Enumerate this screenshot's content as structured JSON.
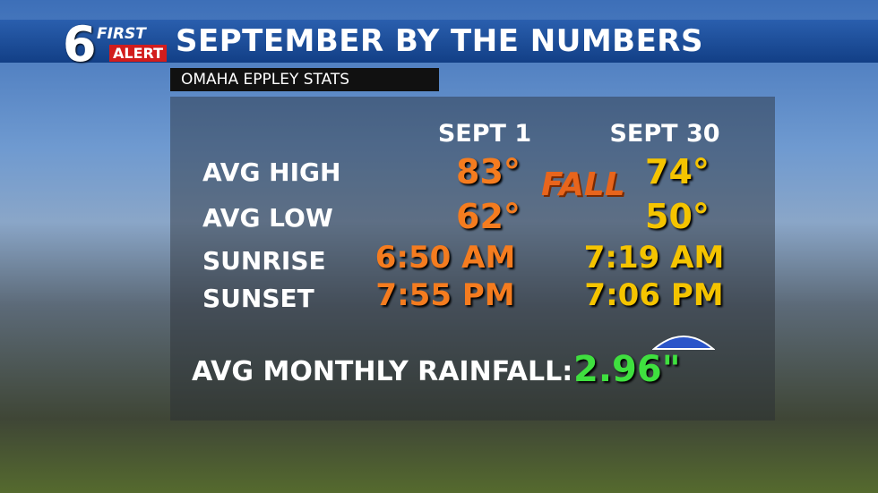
{
  "logo": {
    "number": "6",
    "line1": "FIRST",
    "line2": "ALERT"
  },
  "header": {
    "title": "SEPTEMBER BY THE NUMBERS",
    "subtitle": "OMAHA EPPLEY STATS"
  },
  "table": {
    "columns": [
      "SEPT 1",
      "SEPT 30"
    ],
    "rows": [
      [
        "AVG HIGH",
        "83°",
        "74°"
      ],
      [
        "AVG LOW",
        "62°",
        "50°"
      ],
      [
        "SUNRISE",
        "6:50 AM",
        "7:19 AM"
      ],
      [
        "SUNSET",
        "7:55 PM",
        "7:06 PM"
      ]
    ]
  },
  "decoration": "FALL",
  "rainfall": {
    "label": "AVG MONTHLY RAINFALL:",
    "value": "2.96\""
  }
}
